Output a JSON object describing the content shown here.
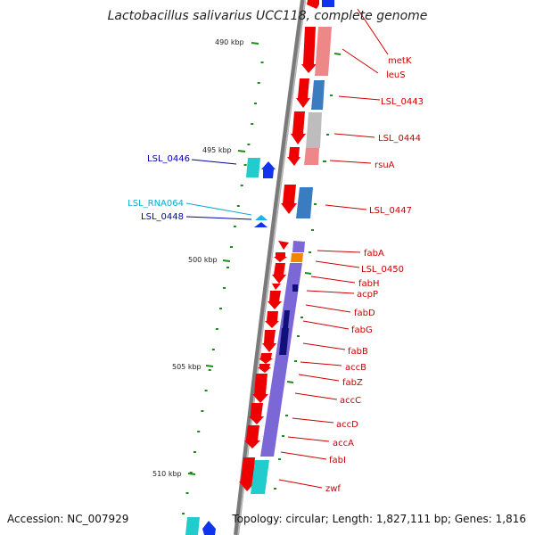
{
  "title": "Lactobacillus salivarius UCC118, complete genome",
  "accession": "Accession: NC_007929",
  "topology": "Topology: circular; Length: 1,827,111 bp; Genes: 1,816",
  "colors": {
    "backbone": "#7a7a7a",
    "forward_gene": "#ee0000",
    "rna_cds": "#ee8888",
    "cds_blue": "#3a7cbf",
    "cds_grey": "#bdbdbd",
    "cds_purple": "#7b68d6",
    "cds_orange": "#ee8800",
    "cds_navy": "#10107a",
    "reverse_gene": "#1133ee",
    "reverse_cds": "#22cccc",
    "rna": "#1ab2ee",
    "label_red": "#cc0000",
    "label_blue": "#0000aa",
    "label_cyan": "#11aacc",
    "tick": "#1a8c1a"
  },
  "ticks": [
    {
      "label": "490 kbp"
    },
    {
      "label": "495 kbp"
    },
    {
      "label": "500 kbp"
    },
    {
      "label": "505 kbp"
    },
    {
      "label": "510 kbp"
    }
  ],
  "labels_right": [
    {
      "text": "metK"
    },
    {
      "text": "leuS"
    },
    {
      "text": "LSL_0443"
    },
    {
      "text": "LSL_0444"
    },
    {
      "text": "rsuA"
    },
    {
      "text": "LSL_0447"
    },
    {
      "text": "fabA"
    },
    {
      "text": "LSL_0450"
    },
    {
      "text": "fabH"
    },
    {
      "text": "acpP"
    },
    {
      "text": "fabD"
    },
    {
      "text": "fabG"
    },
    {
      "text": "fabB"
    },
    {
      "text": "accB"
    },
    {
      "text": "fabZ"
    },
    {
      "text": "accC"
    },
    {
      "text": "accD"
    },
    {
      "text": "accA"
    },
    {
      "text": "fabI"
    },
    {
      "text": "zwf"
    }
  ],
  "labels_left": [
    {
      "text": "LSL_0446",
      "color": "blue"
    },
    {
      "text": "LSL_RNA064",
      "color": "cyan"
    },
    {
      "text": "LSL_0448",
      "color": "blue"
    }
  ]
}
